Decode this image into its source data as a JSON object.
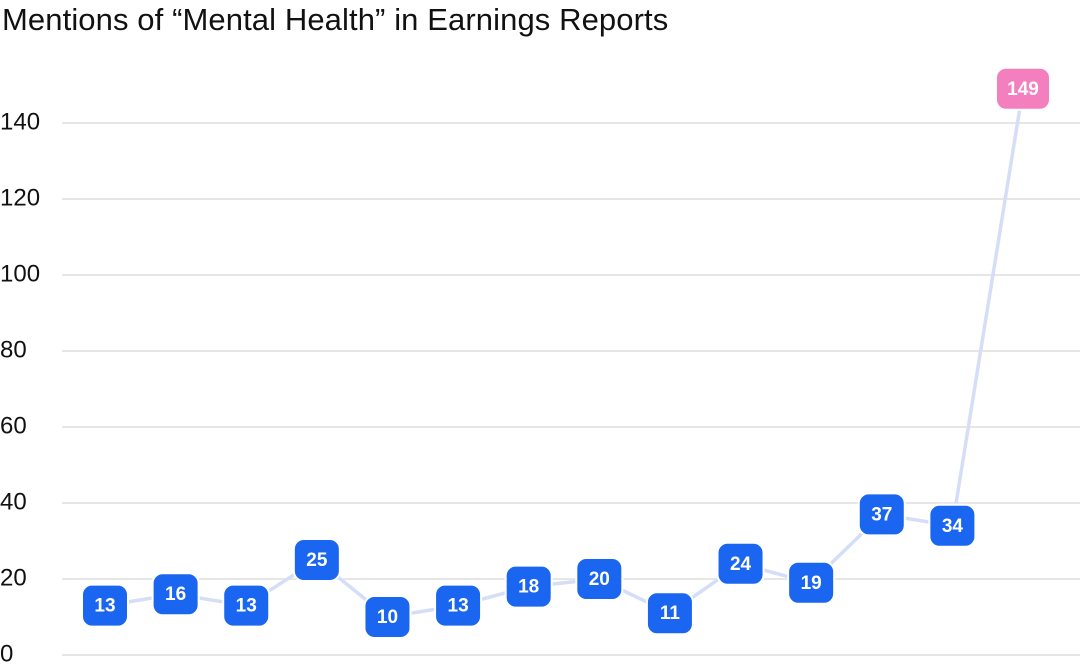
{
  "chart_data": {
    "type": "line",
    "title": "Mentions of “Mental Health” in Earnings Reports",
    "xlabel": "",
    "ylabel": "",
    "ylim": [
      0,
      150
    ],
    "yticks": [
      0,
      20,
      40,
      60,
      80,
      100,
      120,
      140
    ],
    "grid": true,
    "legend": "none",
    "series": [
      {
        "values": [
          13,
          16,
          13,
          25,
          10,
          13,
          18,
          20,
          11,
          24,
          19,
          37,
          34,
          149
        ]
      }
    ],
    "colors": {
      "line": "#d5def7",
      "marker": "#1a66f0",
      "highlight_marker": "#f47fbf",
      "grid": "#e6e6e6",
      "label_text": "#ffffff"
    },
    "highlight_index": 13
  }
}
